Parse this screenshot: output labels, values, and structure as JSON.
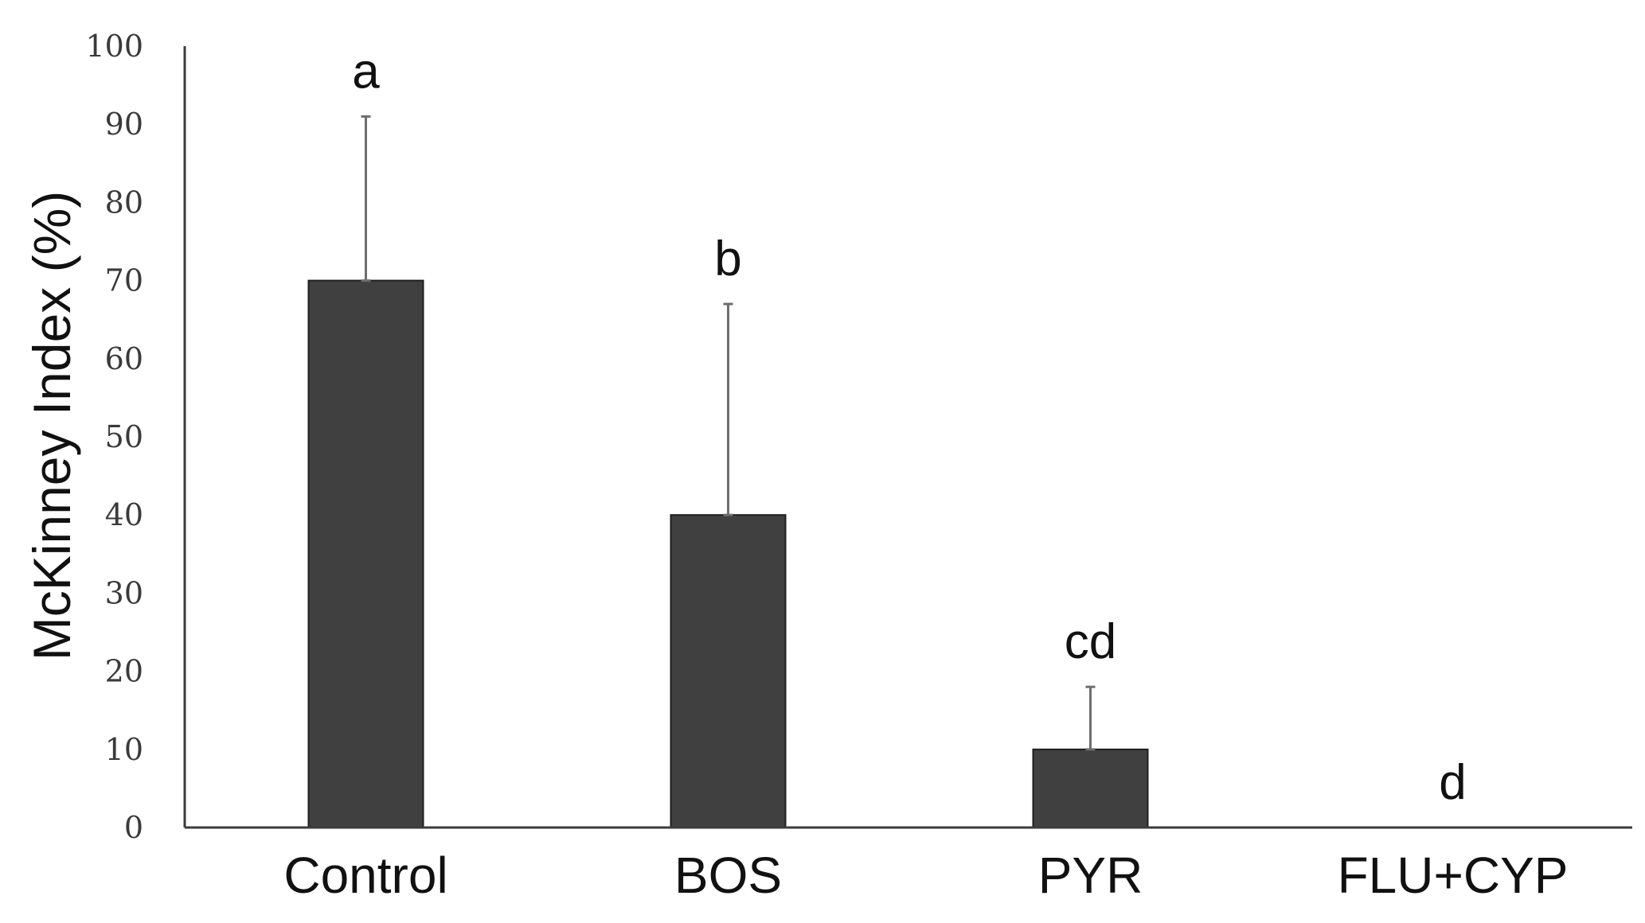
{
  "chart_data": {
    "type": "bar",
    "title": "",
    "xlabel": "",
    "ylabel": "McKinney Index (%)",
    "ylim": [
      0,
      100
    ],
    "yticks": [
      0,
      10,
      20,
      30,
      40,
      50,
      60,
      70,
      80,
      90,
      100
    ],
    "grid": false,
    "categories": [
      "Control",
      "BOS",
      "PYR",
      "FLU+CYP"
    ],
    "values": [
      70,
      40,
      10,
      0
    ],
    "error_upper": [
      21,
      27,
      8,
      0
    ],
    "significance_labels": [
      "a",
      "b",
      "cd",
      "d"
    ],
    "bar_color": "#404040",
    "axis_color": "#3c3c3c",
    "error_bar_color": "#6e6e6e"
  }
}
